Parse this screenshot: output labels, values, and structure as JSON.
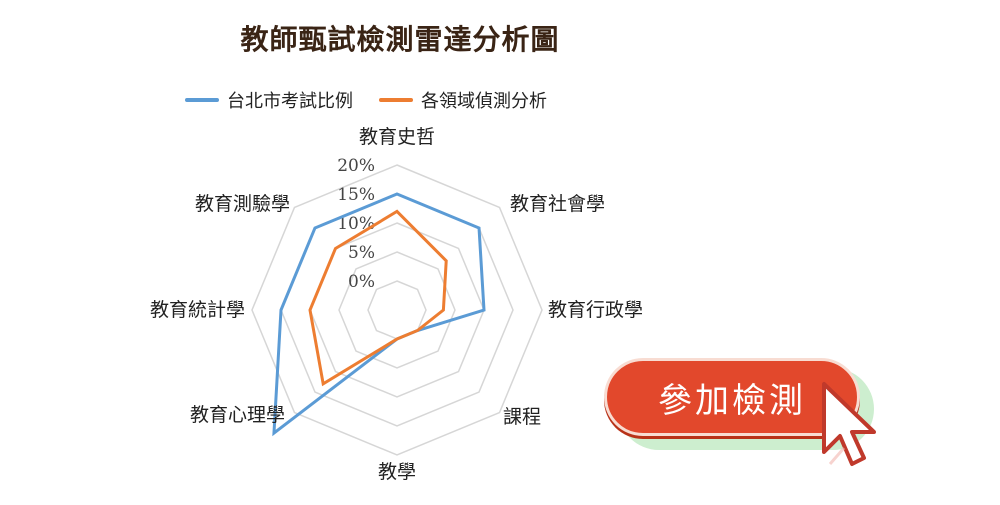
{
  "title": "教師甄試檢測雷達分析圖",
  "legend": [
    {
      "label": "台北市考試比例",
      "color": "#5b9bd5"
    },
    {
      "label": "各領域偵測分析",
      "color": "#ed7d31"
    }
  ],
  "chart_data": {
    "type": "radar",
    "title": "教師甄試檢測雷達分析圖",
    "categories": [
      "教育史哲",
      "教育社會學",
      "教育行政學",
      "課程",
      "教學",
      "教育心理學",
      "教育統計學",
      "教育測驗學"
    ],
    "tick_labels": [
      "0%",
      "5%",
      "10%",
      "15%",
      "20%"
    ],
    "rlim": [
      0,
      20
    ],
    "r_baseline": -5,
    "grid": true,
    "legend_position": "top",
    "series": [
      {
        "name": "台北市考試比例",
        "color": "#5b9bd5",
        "values": [
          15,
          15,
          10,
          0,
          0,
          25,
          15,
          15
        ]
      },
      {
        "name": "各領域偵測分析",
        "color": "#ed7d31",
        "values": [
          12,
          7,
          3,
          0,
          0,
          13,
          10,
          10
        ]
      }
    ]
  },
  "cta": {
    "label": "參加檢測",
    "button_color": "#e2482c"
  },
  "icons": {
    "cursor": "pointer-cursor-icon"
  }
}
